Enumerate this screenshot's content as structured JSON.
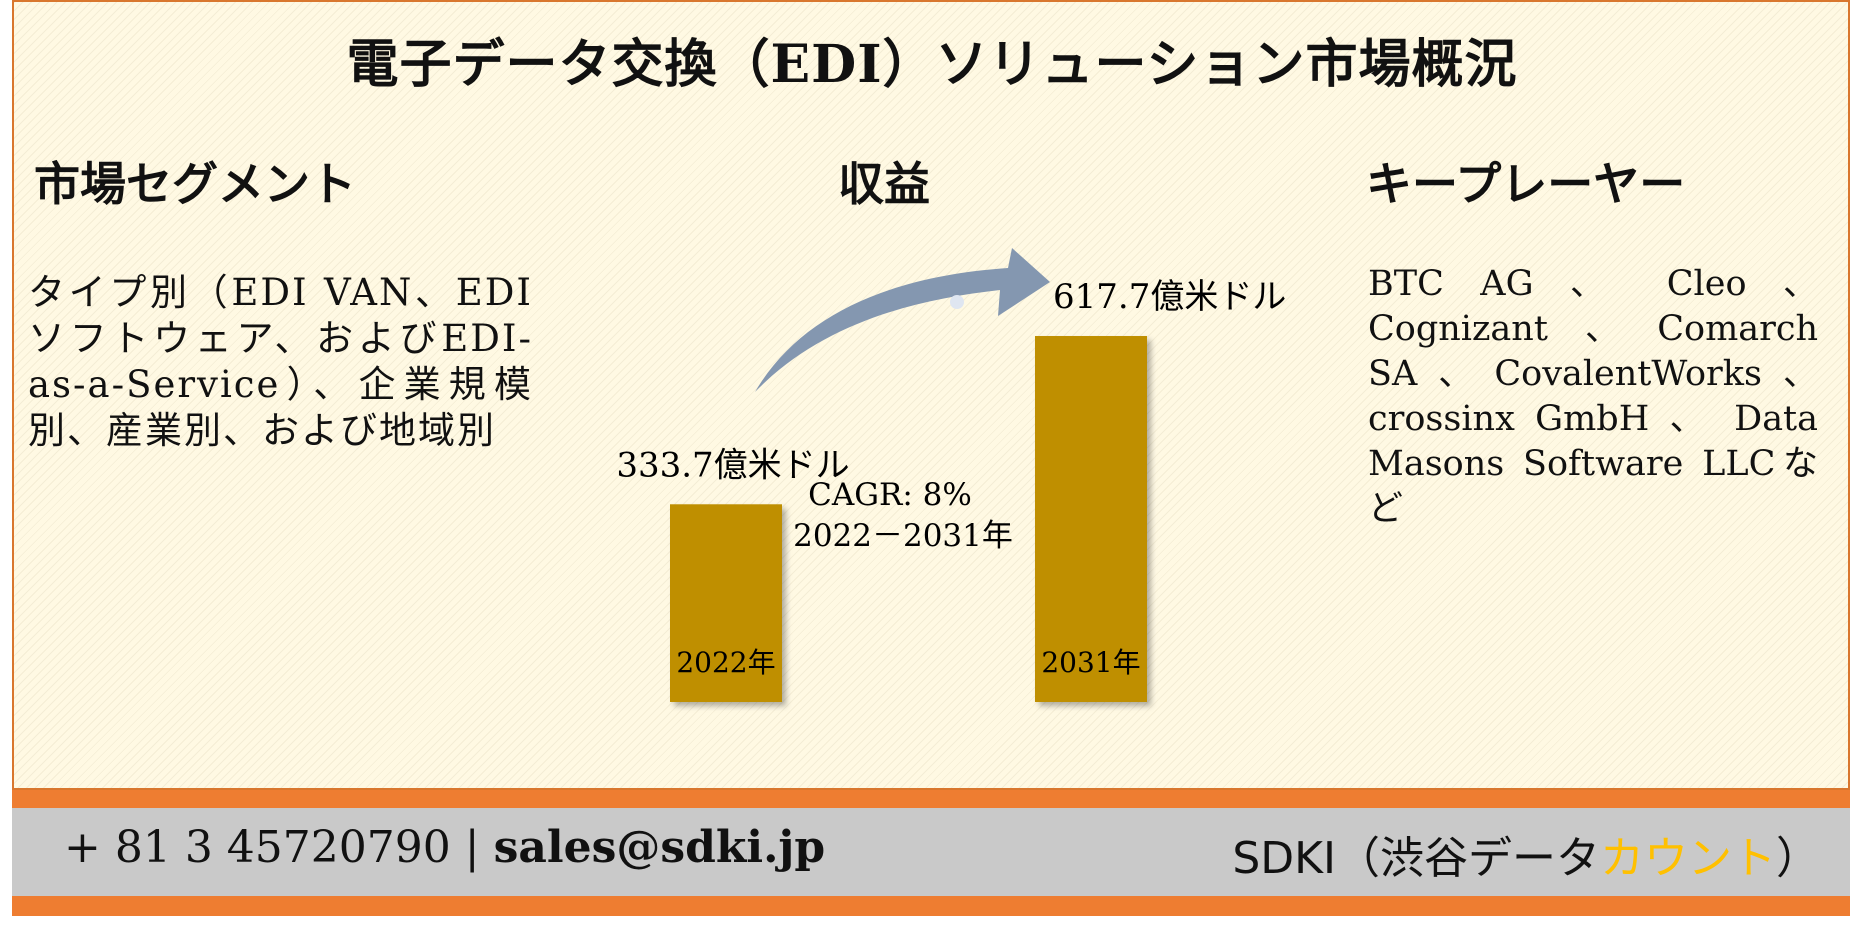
{
  "title": "電子データ交換（EDI）ソリューション市場概況",
  "segments": {
    "heading": "市場セグメント",
    "text": "タイプ別（EDI VAN、EDIソフトウェア、およびEDI-as-a-Service）、企業規模別、産業別、および地域別"
  },
  "revenue": {
    "heading": "収益"
  },
  "players": {
    "heading": "キープレーヤー",
    "text": "BTC AG 、 Cleo 、Cognizant、Comarch SA、CovalentWorks、 crossinx GmbH 、 Data Masons Software LLCなど"
  },
  "chart_data": {
    "type": "bar",
    "categories": [
      "2022年",
      "2031年"
    ],
    "values": [
      333.7,
      617.7
    ],
    "value_labels": [
      "333.7億米ドル",
      "617.7億米ドル"
    ],
    "annotation_line1": "CAGR: 8%",
    "annotation_line2": "2022－2031年",
    "bar_color": "#bf8f00",
    "arrow_color": "#8497b0"
  },
  "footer": {
    "phone": "+ 81 3 45720790",
    "separator": "|",
    "email": "sales@sdki.jp",
    "brand_main": "SDKI（渋谷データ",
    "brand_accent": "カウント",
    "brand_end": "）",
    "accent_color": "#ffc000"
  }
}
